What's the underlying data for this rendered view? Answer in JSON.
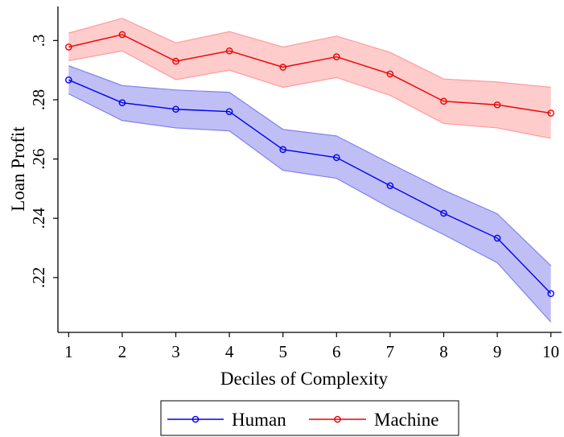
{
  "chart_data": {
    "type": "line",
    "xlabel": "Deciles of Complexity",
    "ylabel": "Loan Profit",
    "x": [
      1,
      2,
      3,
      4,
      5,
      6,
      7,
      8,
      9,
      10
    ],
    "xlim": [
      0.8,
      10.2
    ],
    "ylim": [
      0.2015,
      0.3115
    ],
    "xticks": [
      "1",
      "2",
      "3",
      "4",
      "5",
      "6",
      "7",
      "8",
      "9",
      "10"
    ],
    "yticks": [
      {
        "value": 0.22,
        "label": ".22"
      },
      {
        "value": 0.24,
        "label": ".24"
      },
      {
        "value": 0.26,
        "label": ".26"
      },
      {
        "value": 0.28,
        "label": ".28"
      },
      {
        "value": 0.3,
        "label": ".3"
      }
    ],
    "grid": false,
    "legend_position": "bottom",
    "series": [
      {
        "name": "Human",
        "color": "#0000ee",
        "band_color": "#8080ee",
        "marker": "hollow-circle",
        "values": [
          0.2867,
          0.279,
          0.2768,
          0.276,
          0.2632,
          0.2605,
          0.251,
          0.2417,
          0.2333,
          0.2146
        ],
        "lower": [
          0.282,
          0.273,
          0.2705,
          0.2695,
          0.2562,
          0.2535,
          0.2435,
          0.2345,
          0.225,
          0.205
        ],
        "upper": [
          0.2915,
          0.2848,
          0.2833,
          0.2825,
          0.27,
          0.2678,
          0.2585,
          0.2495,
          0.2415,
          0.224
        ]
      },
      {
        "name": "Machine",
        "color": "#ee0000",
        "band_color": "#ff9a9a",
        "marker": "hollow-circle",
        "values": [
          0.2978,
          0.302,
          0.293,
          0.2965,
          0.291,
          0.2945,
          0.2887,
          0.2795,
          0.2783,
          0.2755
        ],
        "lower": [
          0.2932,
          0.2965,
          0.2868,
          0.29,
          0.2842,
          0.2875,
          0.2815,
          0.272,
          0.2705,
          0.267
        ],
        "upper": [
          0.3025,
          0.3075,
          0.2992,
          0.303,
          0.2978,
          0.3015,
          0.296,
          0.287,
          0.286,
          0.2842
        ]
      }
    ]
  }
}
